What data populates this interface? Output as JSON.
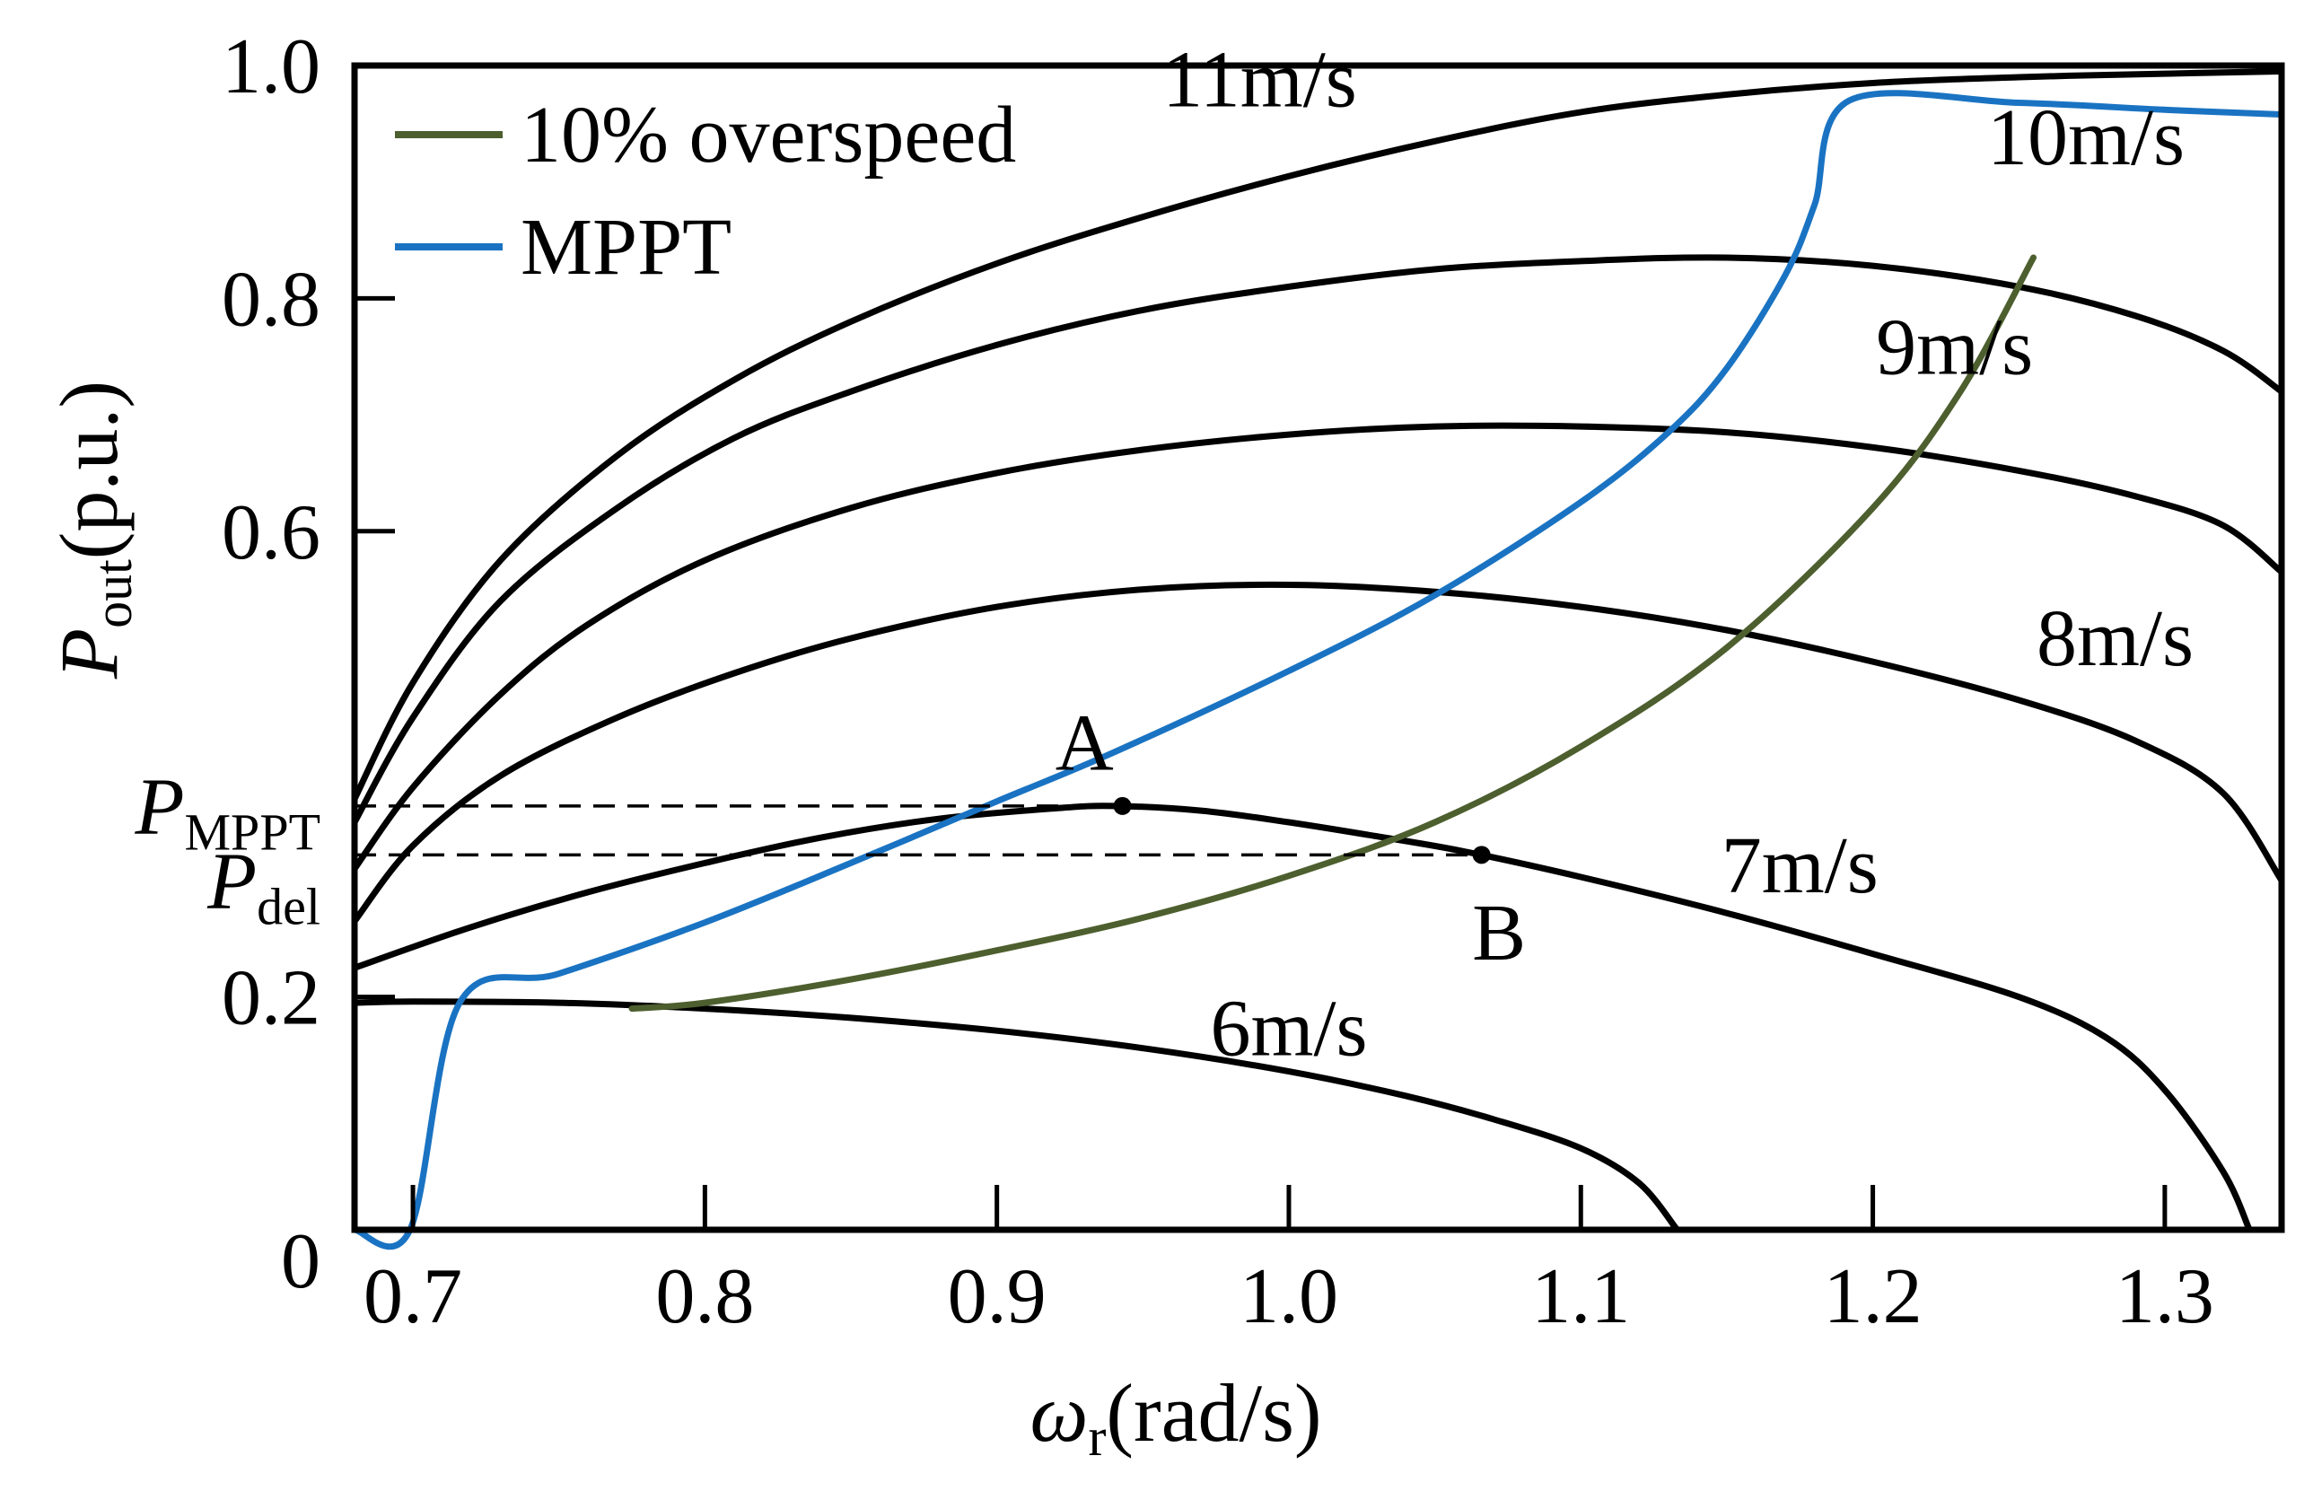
{
  "chart_data": {
    "type": "line",
    "title": "",
    "xlabel": {
      "symbol": "ω",
      "subscript": "r",
      "unit": "(rad/s)"
    },
    "ylabel": {
      "symbol": "P",
      "subscript": "out",
      "unit": "(p.u.)"
    },
    "xlim": [
      0.68,
      1.34
    ],
    "ylim": [
      0,
      1.0
    ],
    "x_ticks": [
      0.7,
      0.8,
      0.9,
      1.0,
      1.1,
      1.2,
      1.3
    ],
    "x_tick_labels": [
      "0.7",
      "0.8",
      "0.9",
      "1.0",
      "1.1",
      "1.2",
      "1.3"
    ],
    "y_ticks": [
      0,
      0.2,
      0.6,
      0.8,
      1.0
    ],
    "y_tick_labels": [
      "0",
      "0.2",
      "0.6",
      "0.8",
      "1.0"
    ],
    "grid": false,
    "legend_position": "top-left",
    "colors": {
      "wind": "#000000",
      "overspeed": "#4d5f2e",
      "mppt": "#1a73c2",
      "dashed": "#000000"
    },
    "series": [
      {
        "name": "6m/s",
        "kind": "wind",
        "label": "6m/s",
        "label_at": [
          1.0,
          0.15
        ],
        "x": [
          0.68,
          0.7,
          0.75,
          0.8,
          0.85,
          0.9,
          0.95,
          1.0,
          1.04,
          1.07,
          1.1,
          1.12,
          1.133
        ],
        "y": [
          0.195,
          0.196,
          0.195,
          0.19,
          0.182,
          0.171,
          0.156,
          0.136,
          0.115,
          0.095,
          0.07,
          0.04,
          0.0
        ]
      },
      {
        "name": "7m/s",
        "kind": "wind",
        "label": "7m/s",
        "label_at": [
          1.175,
          0.29
        ],
        "x": [
          0.68,
          0.72,
          0.76,
          0.8,
          0.84,
          0.88,
          0.92,
          0.94,
          0.97,
          1.0,
          1.03,
          1.06,
          1.1,
          1.15,
          1.2,
          1.25,
          1.28,
          1.3,
          1.32,
          1.329
        ],
        "y": [
          0.225,
          0.26,
          0.29,
          0.315,
          0.337,
          0.353,
          0.362,
          0.364,
          0.36,
          0.35,
          0.338,
          0.325,
          0.303,
          0.272,
          0.237,
          0.2,
          0.165,
          0.12,
          0.05,
          0.0
        ]
      },
      {
        "name": "8m/s",
        "kind": "wind",
        "label": "8m/s",
        "label_at": [
          1.283,
          0.485
        ],
        "x": [
          0.68,
          0.7,
          0.73,
          0.77,
          0.81,
          0.85,
          0.9,
          0.95,
          1.0,
          1.05,
          1.1,
          1.15,
          1.2,
          1.25,
          1.29,
          1.32,
          1.34
        ],
        "y": [
          0.265,
          0.33,
          0.39,
          0.44,
          0.478,
          0.508,
          0.535,
          0.55,
          0.554,
          0.548,
          0.535,
          0.515,
          0.488,
          0.455,
          0.42,
          0.375,
          0.3
        ]
      },
      {
        "name": "9m/s",
        "kind": "wind",
        "label": "9m/s",
        "label_at": [
          1.228,
          0.735
        ],
        "x": [
          0.68,
          0.7,
          0.73,
          0.76,
          0.8,
          0.85,
          0.9,
          0.95,
          1.0,
          1.05,
          1.1,
          1.15,
          1.2,
          1.25,
          1.29,
          1.32,
          1.34
        ],
        "y": [
          0.31,
          0.38,
          0.46,
          0.52,
          0.575,
          0.62,
          0.65,
          0.67,
          0.683,
          0.69,
          0.69,
          0.685,
          0.672,
          0.652,
          0.63,
          0.605,
          0.565
        ]
      },
      {
        "name": "10m/s",
        "kind": "wind",
        "label": "10m/s",
        "label_at": [
          1.273,
          0.915
        ],
        "x": [
          0.68,
          0.7,
          0.73,
          0.77,
          0.81,
          0.85,
          0.9,
          0.95,
          1.0,
          1.05,
          1.1,
          1.15,
          1.2,
          1.25,
          1.29,
          1.32,
          1.34
        ],
        "y": [
          0.35,
          0.44,
          0.54,
          0.62,
          0.68,
          0.72,
          0.76,
          0.79,
          0.81,
          0.825,
          0.832,
          0.835,
          0.828,
          0.81,
          0.785,
          0.755,
          0.72
        ]
      },
      {
        "name": "11m/s",
        "kind": "wind",
        "label": "11m/s",
        "label_at": [
          0.99,
          0.965
        ],
        "x": [
          0.68,
          0.7,
          0.73,
          0.77,
          0.81,
          0.85,
          0.9,
          0.95,
          1.0,
          1.05,
          1.1,
          1.15,
          1.2,
          1.25,
          1.3,
          1.34
        ],
        "y": [
          0.37,
          0.47,
          0.575,
          0.665,
          0.73,
          0.78,
          0.83,
          0.87,
          0.905,
          0.935,
          0.96,
          0.975,
          0.985,
          0.99,
          0.993,
          0.995
        ]
      },
      {
        "name": "10% overspeed",
        "kind": "overspeed",
        "x": [
          0.775,
          0.8,
          0.85,
          0.9,
          0.95,
          1.0,
          1.05,
          1.1,
          1.15,
          1.2,
          1.23,
          1.255
        ],
        "y": [
          0.19,
          0.195,
          0.215,
          0.24,
          0.268,
          0.304,
          0.35,
          0.415,
          0.5,
          0.62,
          0.72,
          0.835
        ]
      },
      {
        "name": "MPPT",
        "kind": "mppt",
        "x": [
          0.68,
          0.699,
          0.716,
          0.75,
          0.8,
          0.85,
          0.9,
          0.94,
          1.0,
          1.05,
          1.1,
          1.13,
          1.15,
          1.17,
          1.18,
          1.192,
          1.25,
          1.3,
          1.34
        ],
        "y": [
          0.0,
          0.0,
          0.195,
          0.22,
          0.264,
          0.315,
          0.368,
          0.41,
          0.48,
          0.545,
          0.625,
          0.685,
          0.74,
          0.82,
          0.88,
          0.97,
          0.968,
          0.962,
          0.958
        ]
      }
    ],
    "annotations": [
      {
        "name": "A",
        "label": "A",
        "x": 0.943,
        "y": 0.364,
        "label_at": [
          0.93,
          0.395
        ]
      },
      {
        "name": "B",
        "label": "B",
        "x": 1.066,
        "y": 0.322,
        "label_at": [
          1.072,
          0.232
        ]
      }
    ],
    "reference_lines": [
      {
        "name": "P_MPPT",
        "symbol": "P",
        "subscript": "MPPT",
        "y": 0.364,
        "x_end": 0.943
      },
      {
        "name": "P_del",
        "symbol": "P",
        "subscript": "del",
        "y": 0.322,
        "x_end": 1.066
      }
    ],
    "legend": [
      {
        "label": "10% overspeed",
        "series": "10% overspeed"
      },
      {
        "label": "MPPT",
        "series": "MPPT"
      }
    ]
  }
}
